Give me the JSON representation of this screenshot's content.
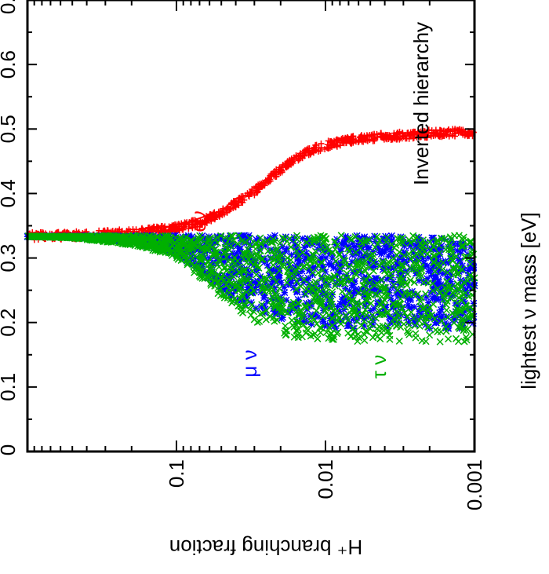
{
  "chart_data": {
    "type": "scatter",
    "title": "",
    "xlabel": "H⁺ branching fraction",
    "ylabel": "lightest ν mass [eV]",
    "xlim": [
      0,
      0.7
    ],
    "ylim": [
      0.001,
      1
    ],
    "y_scale": "log",
    "orientation": "rotated-90-clockwise",
    "grid": false,
    "x_ticks": [
      "0",
      "0.1",
      "0.2",
      "0.3",
      "0.4",
      "0.5",
      "0.6",
      "0.7"
    ],
    "y_ticks": [
      "0.001",
      "0.01",
      "0.1"
    ],
    "annotations": [
      {
        "text": "Inverted hierarchy",
        "color": "#000000"
      },
      {
        "text": "eν",
        "color": "#ff0000"
      },
      {
        "text": "μ ν",
        "color": "#0000ff"
      },
      {
        "text": "τ ν",
        "color": "#00b000"
      }
    ],
    "series": [
      {
        "label": "eν",
        "marker": "+",
        "color": "#ff0000",
        "mass_ev": [
          0.001,
          0.002,
          0.003,
          0.005,
          0.007,
          0.01,
          0.013,
          0.016,
          0.02,
          0.025,
          0.03,
          0.04,
          0.05,
          0.07,
          0.1,
          0.15,
          0.2,
          0.3,
          0.5,
          1.0
        ],
        "fraction": [
          0.495,
          0.493,
          0.49,
          0.487,
          0.482,
          0.475,
          0.465,
          0.453,
          0.437,
          0.42,
          0.403,
          0.385,
          0.37,
          0.355,
          0.347,
          0.342,
          0.339,
          0.337,
          0.335,
          0.334
        ]
      },
      {
        "label": "μ ν",
        "marker": "*",
        "color": "#0000ff",
        "mass_ev": [
          0.001,
          0.005,
          0.01,
          0.02,
          0.03,
          0.05,
          0.07,
          0.1,
          0.2,
          0.5,
          1.0
        ],
        "fraction_max": [
          0.335,
          0.335,
          0.335,
          0.335,
          0.335,
          0.335,
          0.335,
          0.335,
          0.335,
          0.334,
          0.334
        ],
        "fraction_min": [
          0.19,
          0.19,
          0.19,
          0.2,
          0.215,
          0.25,
          0.28,
          0.305,
          0.325,
          0.332,
          0.333
        ]
      },
      {
        "label": "τ ν",
        "marker": "x",
        "color": "#00b000",
        "mass_ev": [
          0.001,
          0.005,
          0.01,
          0.02,
          0.03,
          0.05,
          0.07,
          0.1,
          0.2,
          0.5,
          1.0
        ],
        "fraction_max": [
          0.335,
          0.335,
          0.335,
          0.335,
          0.335,
          0.335,
          0.335,
          0.335,
          0.335,
          0.334,
          0.334
        ],
        "fraction_min": [
          0.17,
          0.17,
          0.17,
          0.18,
          0.2,
          0.24,
          0.27,
          0.3,
          0.32,
          0.331,
          0.333
        ]
      }
    ]
  }
}
